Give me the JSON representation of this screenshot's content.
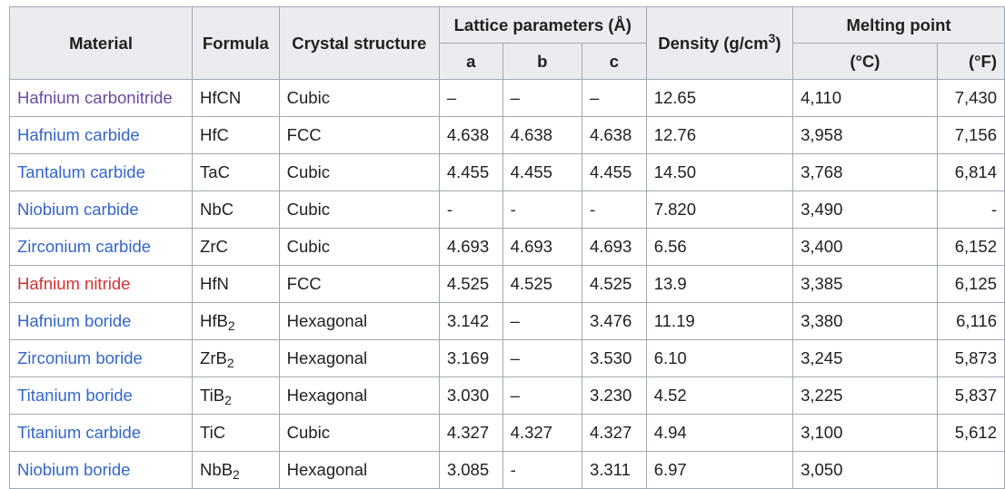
{
  "table": {
    "headers": {
      "material": "Material",
      "formula": "Formula",
      "structure": "Crystal structure",
      "lattice": "Lattice parameters (Å)",
      "a": "a",
      "b": "b",
      "c": "c",
      "density": {
        "text": "Density (g/cm",
        "sup": "3",
        "after": ")"
      },
      "melting": "Melting point",
      "celsius": "(°C)",
      "fahrenheit": "(°F)"
    },
    "rows": [
      {
        "material": "Hafnium carbonitride",
        "color": "#6b4ba1",
        "formula": {
          "text": "HfCN"
        },
        "structure": "Cubic",
        "a": "–",
        "b": "–",
        "c": "–",
        "density": "12.65",
        "melt_c": "4,110",
        "melt_f": "7,430"
      },
      {
        "material": "Hafnium carbide",
        "color": "#3366cc",
        "formula": {
          "text": "HfC"
        },
        "structure": "FCC",
        "a": "4.638",
        "b": "4.638",
        "c": "4.638",
        "density": "12.76",
        "melt_c": "3,958",
        "melt_f": "7,156"
      },
      {
        "material": "Tantalum carbide",
        "color": "#3366cc",
        "formula": {
          "text": "TaC"
        },
        "structure": "Cubic",
        "a": "4.455",
        "b": "4.455",
        "c": "4.455",
        "density": "14.50",
        "melt_c": "3,768",
        "melt_f": "6,814"
      },
      {
        "material": "Niobium carbide",
        "color": "#3366cc",
        "formula": {
          "text": "NbC"
        },
        "structure": "Cubic",
        "a": "-",
        "b": "-",
        "c": "-",
        "density": "7.820",
        "melt_c": "3,490",
        "melt_f": "-"
      },
      {
        "material": "Zirconium carbide",
        "color": "#3366cc",
        "formula": {
          "text": "ZrC"
        },
        "structure": "Cubic",
        "a": "4.693",
        "b": "4.693",
        "c": "4.693",
        "density": "6.56",
        "melt_c": "3,400",
        "melt_f": "6,152"
      },
      {
        "material": "Hafnium nitride",
        "color": "#d33333",
        "formula": {
          "text": "HfN"
        },
        "structure": "FCC",
        "a": "4.525",
        "b": "4.525",
        "c": "4.525",
        "density": "13.9",
        "melt_c": "3,385",
        "melt_f": "6,125"
      },
      {
        "material": "Hafnium boride",
        "color": "#3366cc",
        "formula": {
          "text": "HfB",
          "sub": "2"
        },
        "structure": "Hexagonal",
        "a": "3.142",
        "b": "–",
        "c": "3.476",
        "density": "11.19",
        "melt_c": "3,380",
        "melt_f": "6,116"
      },
      {
        "material": "Zirconium boride",
        "color": "#3366cc",
        "formula": {
          "text": "ZrB",
          "sub": "2"
        },
        "structure": "Hexagonal",
        "a": "3.169",
        "b": "–",
        "c": "3.530",
        "density": "6.10",
        "melt_c": "3,245",
        "melt_f": "5,873"
      },
      {
        "material": "Titanium boride",
        "color": "#3366cc",
        "formula": {
          "text": "TiB",
          "sub": "2"
        },
        "structure": "Hexagonal",
        "a": "3.030",
        "b": "–",
        "c": "3.230",
        "density": "4.52",
        "melt_c": "3,225",
        "melt_f": "5,837"
      },
      {
        "material": "Titanium carbide",
        "color": "#3366cc",
        "formula": {
          "text": "TiC"
        },
        "structure": "Cubic",
        "a": "4.327",
        "b": "4.327",
        "c": "4.327",
        "density": "4.94",
        "melt_c": "3,100",
        "melt_f": "5,612"
      },
      {
        "material": "Niobium boride",
        "color": "#3366cc",
        "formula": {
          "text": "NbB",
          "sub": "2"
        },
        "structure": "Hexagonal",
        "a": "3.085",
        "b": "-",
        "c": "3.311",
        "density": "6.97",
        "melt_c": "3,050",
        "melt_f": null
      }
    ]
  }
}
